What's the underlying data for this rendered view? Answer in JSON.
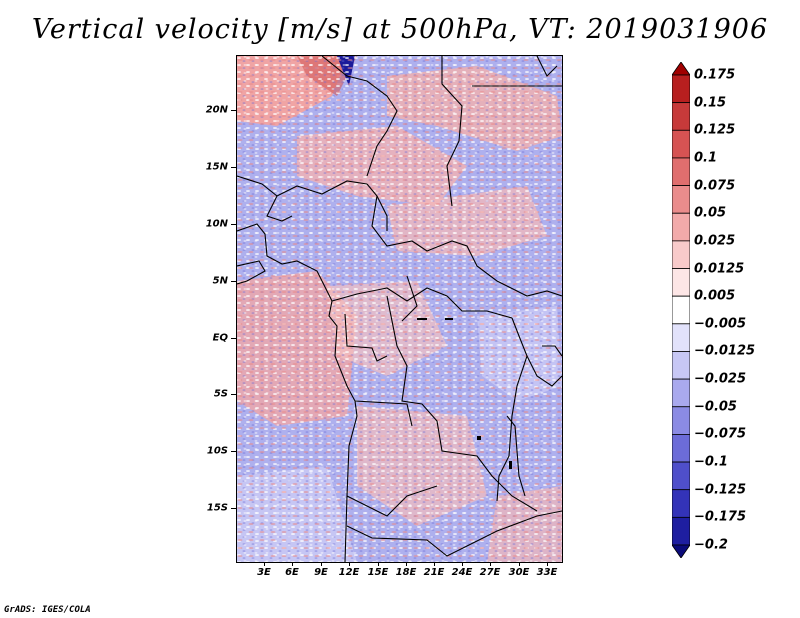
{
  "title": "Vertical velocity [m/s] at 500hPa, VT: 2019031906",
  "credit": "GrADS: IGES/COLA",
  "lat_labels": [
    "20N",
    "15N",
    "10N",
    "5N",
    "EQ",
    "5S",
    "10S",
    "15S"
  ],
  "lon_labels": [
    "3E",
    "6E",
    "9E",
    "12E",
    "15E",
    "18E",
    "21E",
    "24E",
    "27E",
    "30E",
    "33E"
  ],
  "colorbar": {
    "labels": [
      "0.175",
      "0.15",
      "0.125",
      "0.1",
      "0.075",
      "0.05",
      "0.025",
      "0.0125",
      "0.005",
      "−0.005",
      "−0.0125",
      "−0.025",
      "−0.05",
      "−0.075",
      "−0.1",
      "−0.125",
      "−0.175",
      "−0.2"
    ],
    "colors": [
      "#a00000",
      "#b71f1f",
      "#c73a3a",
      "#d65353",
      "#e06e6e",
      "#ea8c8c",
      "#f2aaaa",
      "#f8caca",
      "#fde6e6",
      "#ffffff",
      "#e2e2fb",
      "#c7c7f5",
      "#a9a9ee",
      "#8b8be4",
      "#6c6cd8",
      "#4f4fca",
      "#3333b8",
      "#1e1ea0",
      "#0b0b7a"
    ]
  }
}
